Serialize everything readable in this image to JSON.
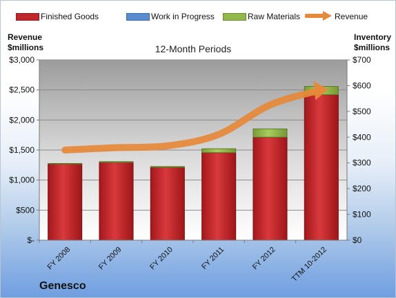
{
  "chart_data": {
    "type": "bar",
    "title": "12-Month Periods",
    "categories": [
      "FY 2008",
      "FY 2009",
      "FY 2010",
      "FY 2011",
      "FY 2012",
      "TTM 10-2012"
    ],
    "series": [
      {
        "name": "Finished Goods",
        "axis": "right",
        "stack": "inventory",
        "color": "#c0262a",
        "values": [
          296,
          302,
          283,
          340,
          400,
          565
        ]
      },
      {
        "name": "Work in Progress",
        "axis": "right",
        "stack": "inventory",
        "color": "#5b8cd0",
        "values": [
          0,
          0,
          0,
          0,
          0,
          0
        ]
      },
      {
        "name": "Raw Materials",
        "axis": "right",
        "stack": "inventory",
        "color": "#92b74a",
        "values": [
          2,
          3,
          3,
          15,
          32,
          32
        ]
      },
      {
        "name": "Revenue",
        "type": "line",
        "axis": "left",
        "color": "#e6893a",
        "values": [
          1500,
          1540,
          1570,
          1760,
          2250,
          2500
        ]
      }
    ],
    "y_left": {
      "label_line1": "Revenue",
      "label_line2": "$millions",
      "range": [
        0,
        3000
      ],
      "ticks": [
        0,
        500,
        1000,
        1500,
        2000,
        2500,
        3000
      ],
      "tick_labels": [
        "$-",
        "$500",
        "$1,000",
        "$1,500",
        "$2,000",
        "$2,500",
        "$3,000"
      ]
    },
    "y_right": {
      "label_line1": "Inventory",
      "label_line2": "$millions",
      "range": [
        0,
        700
      ],
      "ticks": [
        0,
        100,
        200,
        300,
        400,
        500,
        600,
        700
      ],
      "tick_labels": [
        "$0",
        "$100",
        "$200",
        "$300",
        "$400",
        "$500",
        "$600",
        "$700"
      ]
    },
    "grid": true,
    "legend_position": "top"
  },
  "company": "Genesco"
}
